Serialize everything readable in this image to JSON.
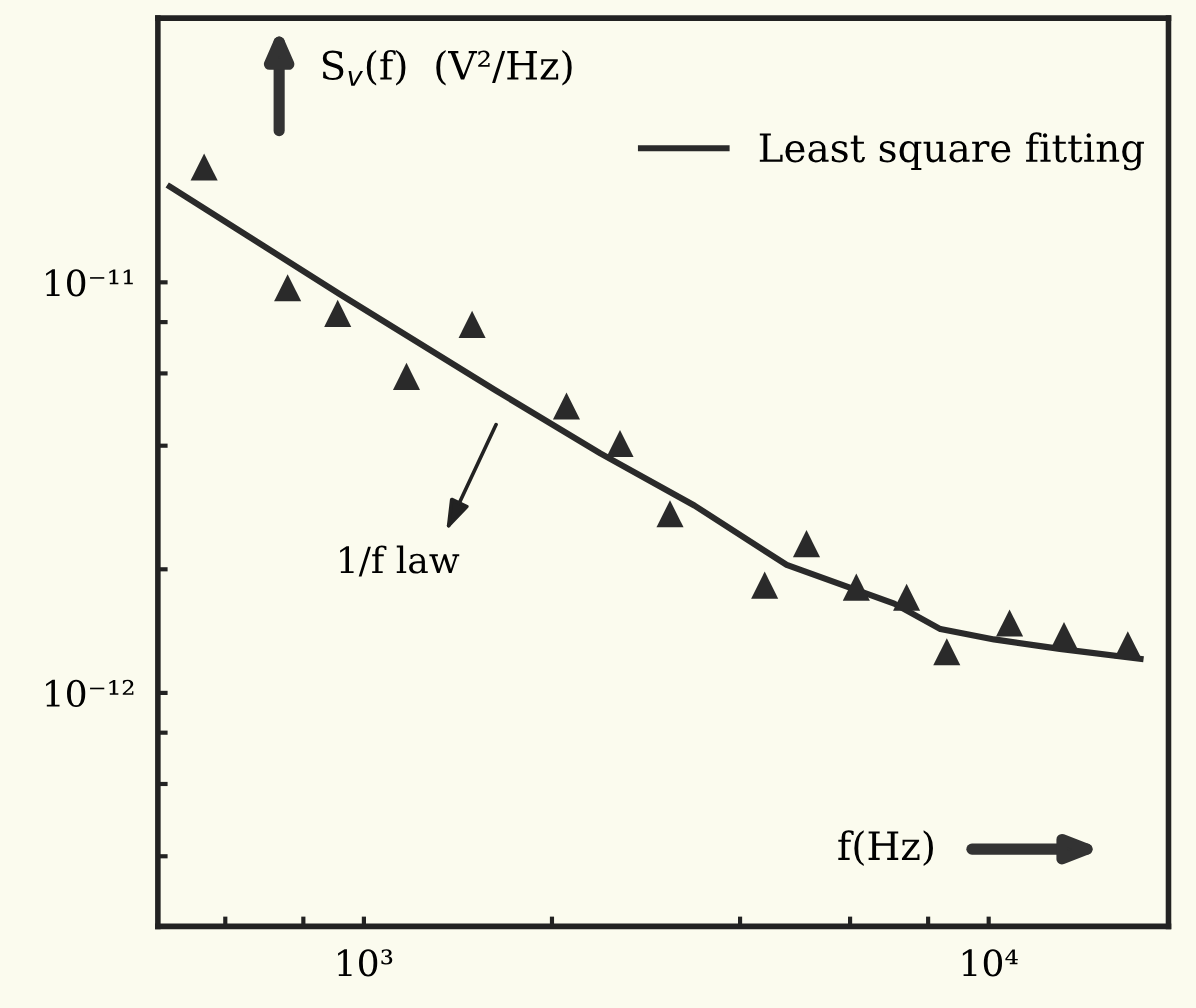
{
  "chart_data": {
    "type": "scatter",
    "ylabel": "S$_{v}$(f)  (V²/Hz)",
    "xlabel": "f(Hz)",
    "annotations": [
      "1/f law"
    ],
    "log": "xy",
    "grid": false,
    "legend": "top right",
    "xlim": [
      468,
      19400
    ],
    "xticks": [
      {
        "value": 600,
        "label": null
      },
      {
        "value": 800,
        "label": null
      },
      {
        "value": 1000,
        "label": "10³"
      },
      {
        "value": 2000,
        "label": null
      },
      {
        "value": 4000,
        "label": null
      },
      {
        "value": 6000,
        "label": null
      },
      {
        "value": 8000,
        "label": null
      },
      {
        "value": 10000,
        "label": "10⁴"
      }
    ],
    "ylim": [
      2.7e-13,
      4.4e-11
    ],
    "yticks": [
      {
        "value": 4e-13,
        "label": null
      },
      {
        "value": 6e-13,
        "label": null
      },
      {
        "value": 8e-13,
        "label": null
      },
      {
        "value": 1e-12,
        "label": "10⁻¹²"
      },
      {
        "value": 2e-12,
        "label": null
      },
      {
        "value": 4e-12,
        "label": null
      },
      {
        "value": 6e-12,
        "label": null
      },
      {
        "value": 8e-12,
        "label": null
      },
      {
        "value": 1e-11,
        "label": "10⁻¹¹"
      }
    ],
    "series": [
      {
        "marker": "triangle",
        "color": "#2a2a2a",
        "x": [
          555,
          755,
          908,
          1170,
          1490,
          2110,
          2570,
          3090,
          4380,
          5110,
          6140,
          7390,
          8570,
          10800,
          13200,
          16700
        ],
        "values": [
          1.91e-11,
          9.7e-12,
          8.4e-12,
          5.9e-12,
          7.9e-12,
          5e-12,
          4.05e-12,
          2.73e-12,
          1.83e-12,
          2.31e-12,
          1.81e-12,
          1.71e-12,
          1.26e-12,
          1.48e-12,
          1.38e-12,
          1.31e-12
        ]
      },
      {
        "type": "line",
        "name": "Least square fitting",
        "color": "#2a2a2a",
        "line_style": "solid",
        "marker": "none",
        "x": [
          489,
          916,
          1620,
          2390,
          3380,
          4750,
          7060,
          8370,
          10200,
          13000,
          17500
        ],
        "values": [
          1.71e-11,
          9.35e-12,
          5.47e-12,
          3.83e-12,
          2.86e-12,
          2.05e-12,
          1.65e-12,
          1.43e-12,
          1.35e-12,
          1.28e-12,
          1.21e-12
        ]
      }
    ]
  }
}
